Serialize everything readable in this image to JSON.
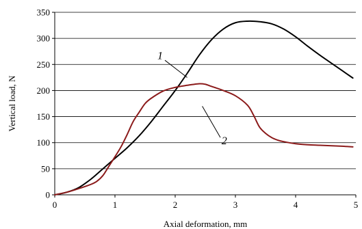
{
  "chart_data": {
    "type": "line",
    "xlabel": "Axial deformation, mm",
    "ylabel": "Vertical load, N",
    "xlim": [
      0,
      5
    ],
    "ylim": [
      0,
      350
    ],
    "xticks": [
      "0",
      "1",
      "2",
      "3",
      "4",
      "5"
    ],
    "yticks": [
      "0",
      "50",
      "100",
      "150",
      "200",
      "250",
      "300",
      "350"
    ],
    "grid": "horizontal",
    "series": [
      {
        "name": "1",
        "color": "#000000",
        "x": [
          0,
          0.2,
          0.4,
          0.6,
          0.8,
          1.0,
          1.2,
          1.4,
          1.6,
          1.8,
          2.0,
          2.2,
          2.4,
          2.6,
          2.8,
          3.0,
          3.2,
          3.4,
          3.6,
          3.8,
          4.0,
          4.2,
          4.4,
          4.6,
          4.8,
          4.95
        ],
        "values": [
          0,
          5,
          14,
          30,
          50,
          70,
          90,
          113,
          140,
          170,
          200,
          233,
          268,
          297,
          318,
          330,
          333,
          332,
          328,
          318,
          303,
          285,
          268,
          252,
          236,
          224
        ]
      },
      {
        "name": "2",
        "color": "#8b1a1a",
        "x": [
          0,
          0.2,
          0.4,
          0.6,
          0.7,
          0.8,
          0.9,
          1.0,
          1.1,
          1.2,
          1.3,
          1.4,
          1.5,
          1.6,
          1.8,
          2.0,
          2.2,
          2.4,
          2.5,
          2.6,
          2.8,
          3.0,
          3.2,
          3.3,
          3.4,
          3.5,
          3.6,
          3.7,
          3.8,
          4.0,
          4.2,
          4.4,
          4.6,
          4.8,
          4.95
        ],
        "values": [
          0,
          5,
          12,
          20,
          26,
          37,
          55,
          73,
          92,
          115,
          140,
          158,
          175,
          185,
          199,
          206,
          210,
          213,
          212,
          208,
          200,
          190,
          172,
          153,
          130,
          118,
          110,
          105,
          102,
          98,
          96,
          95,
          94,
          93,
          92
        ]
      }
    ],
    "annotations": [
      {
        "text": "1",
        "series": "1"
      },
      {
        "text": "2",
        "series": "2"
      }
    ]
  }
}
